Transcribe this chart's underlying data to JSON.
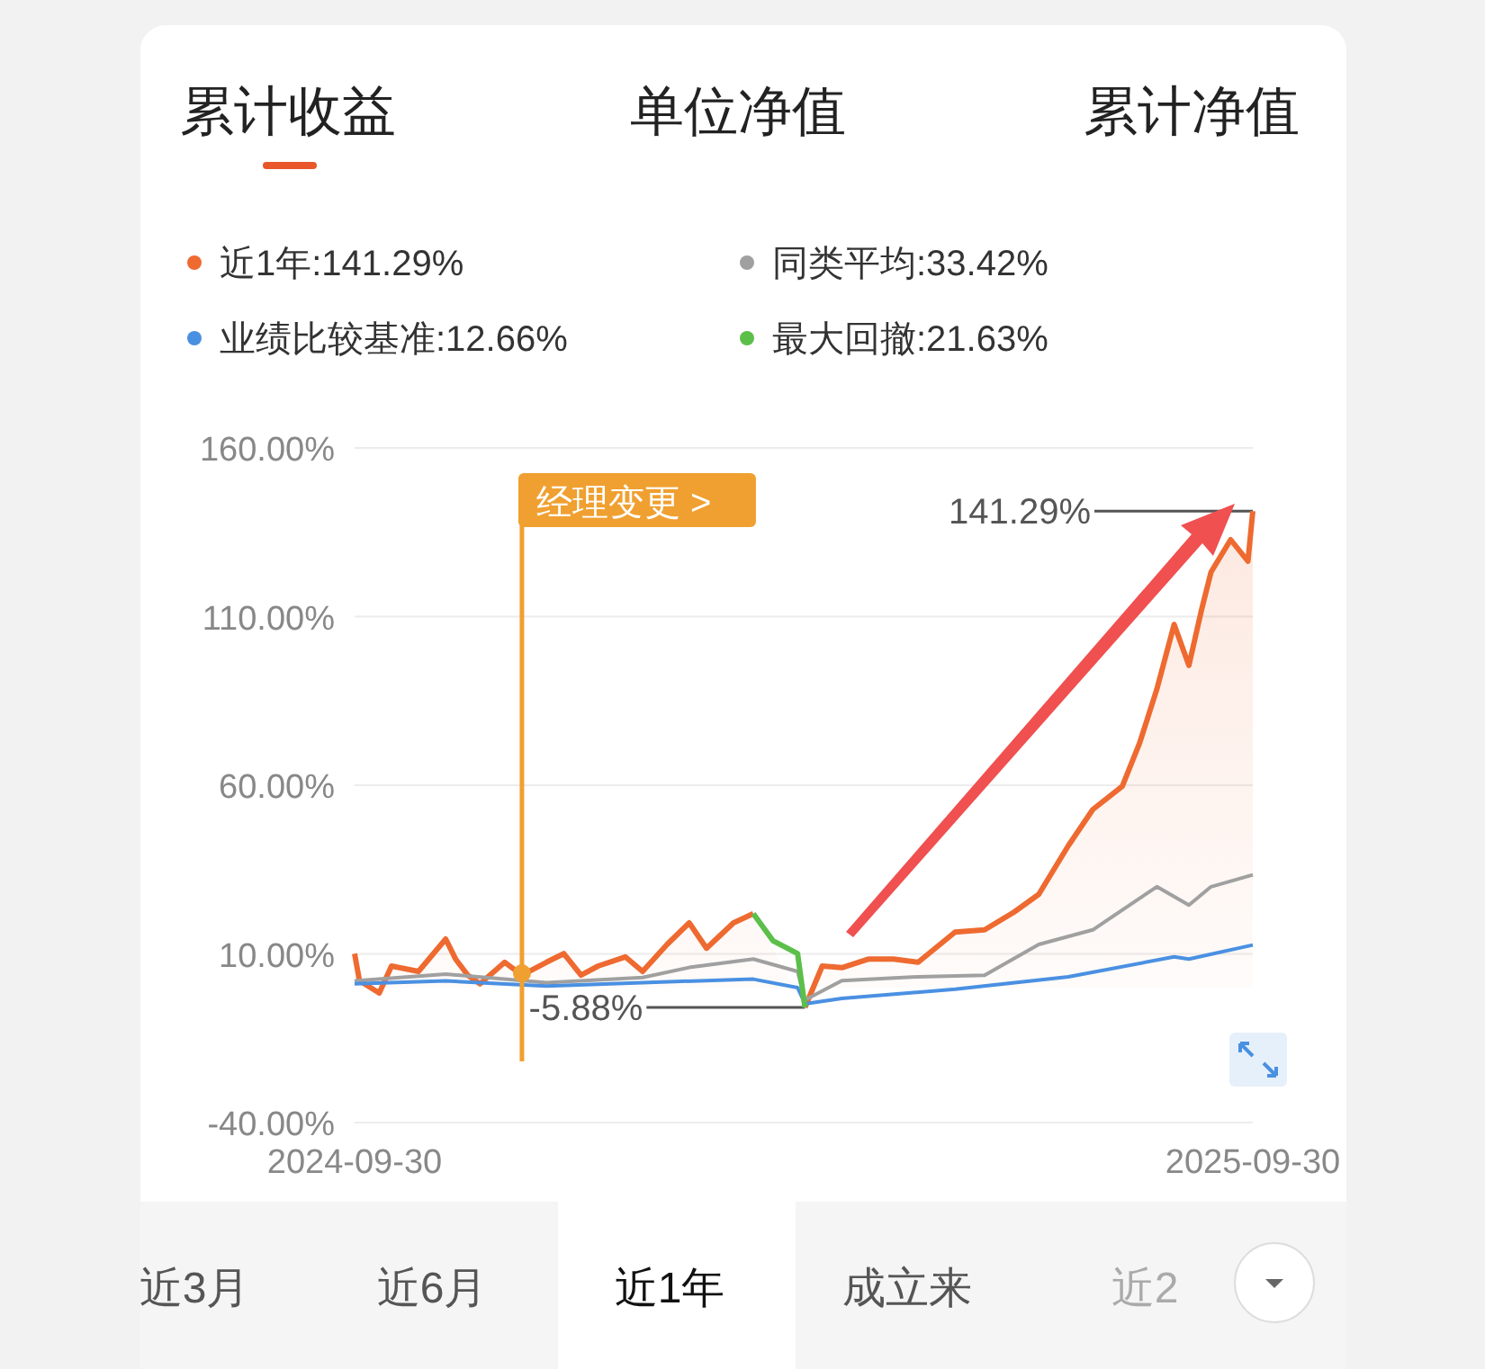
{
  "chart_data": {
    "type": "line",
    "title": "累计收益",
    "legend": "top",
    "grid": "y",
    "xlim": [
      "2024-09-30",
      "2025-09-30"
    ],
    "xticks": [
      "2024-09-30",
      "2025-09-30"
    ],
    "ylim": [
      -40,
      160
    ],
    "yticks": [
      {
        "value": -40,
        "label": "-40.00%"
      },
      {
        "value": 10,
        "label": "10.00%"
      },
      {
        "value": 60,
        "label": "60.00%"
      },
      {
        "value": 110,
        "label": "110.00%"
      },
      {
        "value": 160,
        "label": "160.00%"
      }
    ],
    "series": [
      {
        "name": "近1年:141.29%",
        "type": "area",
        "color": "#ee6a30",
        "x": [
          "2024-09-30",
          "2024-10-02",
          "2024-10-10",
          "2024-10-15",
          "2024-10-26",
          "2024-11-06",
          "2024-11-10",
          "2024-11-15",
          "2024-11-20",
          "2024-11-30",
          "2024-12-07",
          "2024-12-17",
          "2024-12-24",
          "2024-12-31",
          "2025-01-07",
          "2025-01-18",
          "2025-01-25",
          "2025-02-04",
          "2025-02-13",
          "2025-02-20",
          "2025-03-03",
          "2025-03-11",
          "2025-03-19",
          "2025-03-29",
          "2025-04-01",
          "2025-04-08",
          "2025-04-16",
          "2025-04-27",
          "2025-05-07",
          "2025-05-17",
          "2025-06-01",
          "2025-06-13",
          "2025-06-25",
          "2025-07-05",
          "2025-07-17",
          "2025-07-27",
          "2025-08-08",
          "2025-08-15",
          "2025-08-22",
          "2025-08-29",
          "2025-09-04",
          "2025-09-09",
          "2025-09-13",
          "2025-09-21",
          "2025-09-28",
          "2025-09-30"
        ],
        "values": [
          10.1,
          2.1,
          -1.6,
          6.4,
          4.8,
          14.4,
          8.5,
          3.7,
          1.1,
          7.5,
          3.7,
          7.5,
          10.1,
          3.7,
          6.4,
          9.1,
          4.8,
          12.8,
          19.2,
          11.7,
          19.2,
          21.9,
          null,
          null,
          -5.88,
          6.4,
          5.9,
          8.5,
          8.5,
          7.5,
          16.5,
          17.1,
          22.4,
          27.7,
          42.1,
          52.8,
          59.7,
          72.5,
          88.5,
          107.7,
          95.5,
          111.5,
          123.2,
          132.8,
          126.4,
          141.29
        ]
      },
      {
        "name": "同类平均:33.42%",
        "type": "line",
        "color": "#a0a0a0",
        "x": [
          "2024-09-30",
          "2024-11-06",
          "2024-12-17",
          "2025-01-25",
          "2025-02-13",
          "2025-03-11",
          "2025-03-29",
          "2025-04-01",
          "2025-04-16",
          "2025-05-17",
          "2025-06-13",
          "2025-07-05",
          "2025-07-27",
          "2025-08-22",
          "2025-09-04",
          "2025-09-13",
          "2025-09-30"
        ],
        "values": [
          2,
          4,
          1.5,
          3,
          6,
          8.5,
          4.8,
          -3.7,
          2.1,
          3.2,
          3.7,
          12.8,
          17.1,
          29.9,
          24.5,
          29.9,
          33.42
        ]
      },
      {
        "name": "业绩比较基准:12.66%",
        "type": "line",
        "color": "#4a90e2",
        "x": [
          "2024-09-30",
          "2024-11-06",
          "2024-12-17",
          "2025-01-25",
          "2025-03-11",
          "2025-03-29",
          "2025-04-01",
          "2025-04-16",
          "2025-06-01",
          "2025-07-17",
          "2025-08-29",
          "2025-09-04",
          "2025-09-30"
        ],
        "values": [
          1.1,
          2,
          0.5,
          1.5,
          2.5,
          0,
          -4.8,
          -3.2,
          -0.5,
          3.2,
          9.1,
          8.5,
          12.66
        ]
      },
      {
        "name": "最大回撤:21.63%",
        "type": "line",
        "color": "#5cbf4a",
        "x": [
          "2025-03-11",
          "2025-03-19",
          "2025-03-29",
          "2025-04-01"
        ],
        "values": [
          21.9,
          13.9,
          10.1,
          -5.88
        ]
      }
    ],
    "ref_lines": [
      {
        "axis": "x",
        "value": "2024-12-07",
        "label": "经理变更 >",
        "color": "#f0a030"
      }
    ],
    "annotations": [
      "单位净值",
      "累计净值",
      "近3月",
      "近6月",
      "近1年",
      "成立来",
      "近2",
      "141.29%",
      "-5.88%"
    ]
  }
}
